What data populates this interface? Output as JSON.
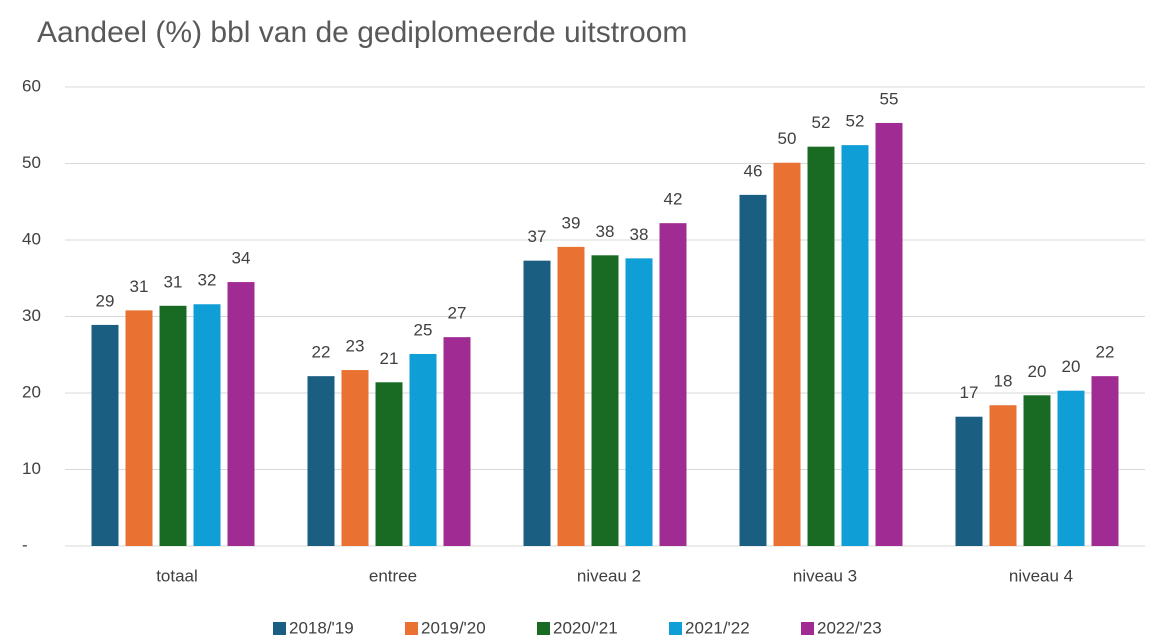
{
  "chart_data": {
    "type": "bar",
    "title": "Aandeel (%) bbl van de gediplomeerde uitstroom",
    "categories": [
      "totaal",
      "entree",
      "niveau 2",
      "niveau 3",
      "niveau 4"
    ],
    "series": [
      {
        "name": "2018/'19",
        "color": "#1a5e82",
        "values": [
          28.9,
          22.2,
          37.3,
          45.9,
          16.9
        ],
        "value_labels": [
          "29",
          "22",
          "37",
          "46",
          "17"
        ]
      },
      {
        "name": "2019/'20",
        "color": "#e97132",
        "values": [
          30.8,
          23.0,
          39.1,
          50.1,
          18.4
        ],
        "value_labels": [
          "31",
          "23",
          "39",
          "50",
          "18"
        ]
      },
      {
        "name": "2020/'21",
        "color": "#196b24",
        "values": [
          31.4,
          21.4,
          38.0,
          52.2,
          19.7
        ],
        "value_labels": [
          "31",
          "21",
          "38",
          "52",
          "20"
        ]
      },
      {
        "name": "2021/'22",
        "color": "#0f9ed5",
        "values": [
          31.6,
          25.1,
          37.6,
          52.4,
          20.3
        ],
        "value_labels": [
          "32",
          "25",
          "38",
          "52",
          "20"
        ]
      },
      {
        "name": "2022/'23",
        "color": "#a02b93",
        "values": [
          34.5,
          27.3,
          42.2,
          55.3,
          22.2
        ],
        "value_labels": [
          "34",
          "27",
          "42",
          "55",
          "22"
        ]
      }
    ],
    "ylim": [
      0,
      60
    ],
    "yticks": [
      {
        "value": 0,
        "label": "-"
      },
      10,
      20,
      30,
      40,
      50,
      60
    ],
    "grid": true,
    "legend": "bottom"
  }
}
